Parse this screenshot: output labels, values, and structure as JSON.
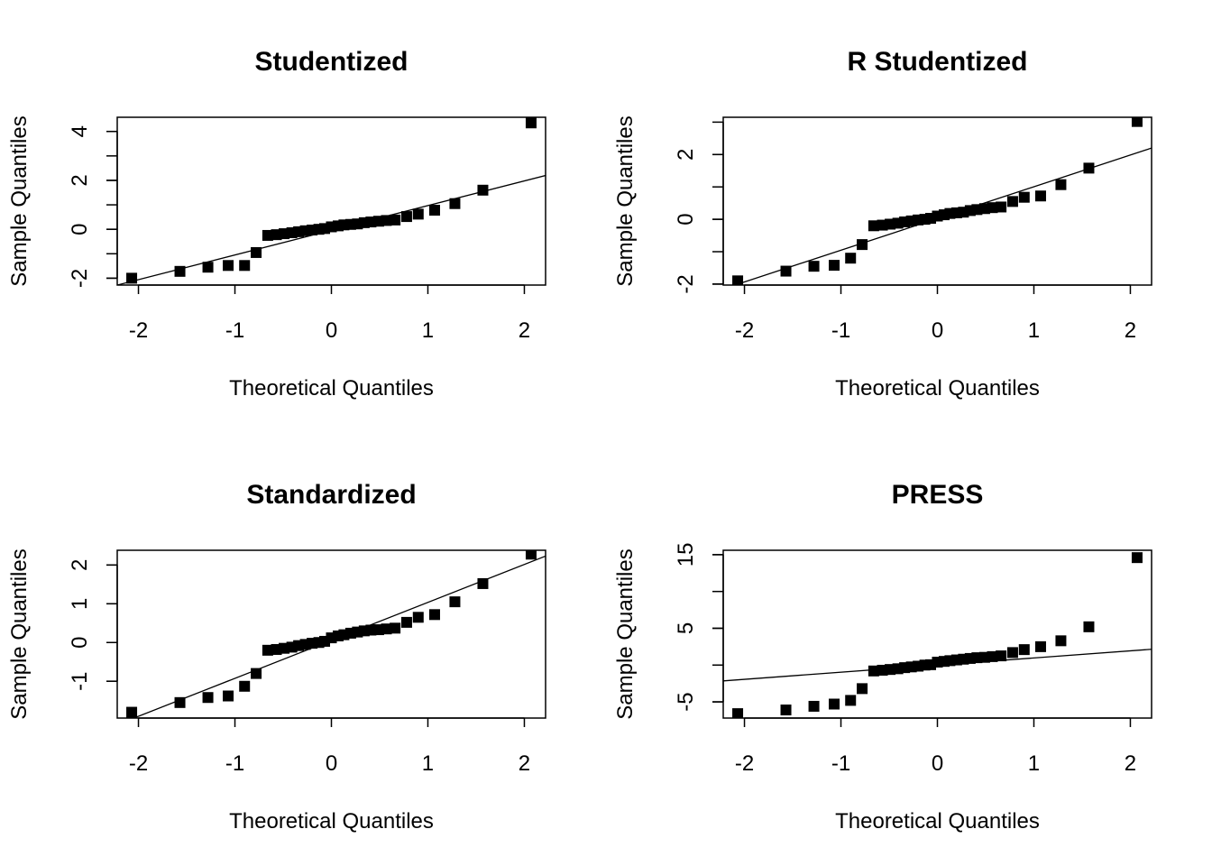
{
  "chart_data": [
    {
      "type": "scatter",
      "title": "Studentized",
      "xlabel": "Theoretical Quantiles",
      "ylabel": "Sample Quantiles",
      "xlim": [
        -2.22,
        2.22
      ],
      "ylim": [
        -2.28,
        4.58
      ],
      "x_ticks": [
        -2,
        -1,
        0,
        1,
        2
      ],
      "y_ticks": [
        -2,
        0,
        2,
        4
      ],
      "y_minor_ticks": [
        -2,
        -1,
        0,
        1,
        2,
        3,
        4
      ],
      "reference_line": [
        {
          "x": -2.22,
          "y": -2.28
        },
        {
          "x": 2.22,
          "y": 2.2
        }
      ],
      "points": {
        "x": [
          -2.07,
          -1.57,
          -1.28,
          -1.07,
          -0.9,
          -0.78,
          -0.66,
          -0.57,
          -0.49,
          -0.41,
          -0.34,
          -0.27,
          -0.2,
          -0.13,
          -0.07,
          0.0,
          0.07,
          0.13,
          0.2,
          0.27,
          0.34,
          0.41,
          0.49,
          0.57,
          0.66,
          0.78,
          0.9,
          1.07,
          1.28,
          1.57,
          2.07
        ],
        "y": [
          -2.0,
          -1.72,
          -1.55,
          -1.48,
          -1.48,
          -0.95,
          -0.25,
          -0.22,
          -0.18,
          -0.14,
          -0.1,
          -0.06,
          -0.03,
          0.0,
          0.03,
          0.1,
          0.14,
          0.18,
          0.2,
          0.22,
          0.27,
          0.3,
          0.33,
          0.36,
          0.38,
          0.52,
          0.62,
          0.78,
          1.05,
          1.6,
          4.35
        ]
      }
    },
    {
      "type": "scatter",
      "title": "R Studentized",
      "xlabel": "Theoretical Quantiles",
      "ylabel": "Sample Quantiles",
      "xlim": [
        -2.22,
        2.22
      ],
      "ylim": [
        -2.03,
        3.15
      ],
      "x_ticks": [
        -2,
        -1,
        0,
        1,
        2
      ],
      "y_ticks": [
        -2,
        0,
        2
      ],
      "y_minor_ticks": [
        -2,
        -1,
        0,
        1,
        2,
        3
      ],
      "reference_line": [
        {
          "x": -2.22,
          "y": -2.15
        },
        {
          "x": 2.22,
          "y": 2.2
        }
      ],
      "points": {
        "x": [
          -2.07,
          -1.57,
          -1.28,
          -1.07,
          -0.9,
          -0.78,
          -0.66,
          -0.57,
          -0.49,
          -0.41,
          -0.34,
          -0.27,
          -0.2,
          -0.13,
          -0.07,
          0.0,
          0.07,
          0.13,
          0.2,
          0.27,
          0.34,
          0.41,
          0.49,
          0.57,
          0.66,
          0.78,
          0.9,
          1.07,
          1.28,
          1.57,
          2.07
        ],
        "y": [
          -1.9,
          -1.6,
          -1.45,
          -1.42,
          -1.2,
          -0.78,
          -0.2,
          -0.18,
          -0.15,
          -0.12,
          -0.08,
          -0.05,
          -0.02,
          0.0,
          0.03,
          0.1,
          0.14,
          0.18,
          0.2,
          0.22,
          0.27,
          0.3,
          0.33,
          0.36,
          0.38,
          0.55,
          0.68,
          0.72,
          1.07,
          1.58,
          3.02
        ]
      }
    },
    {
      "type": "scatter",
      "title": "Standardized",
      "xlabel": "Theoretical Quantiles",
      "ylabel": "Sample Quantiles",
      "xlim": [
        -2.22,
        2.22
      ],
      "ylim": [
        -1.95,
        2.38
      ],
      "x_ticks": [
        -2,
        -1,
        0,
        1,
        2
      ],
      "y_ticks": [
        -1,
        0,
        1,
        2
      ],
      "reference_line": [
        {
          "x": -2.22,
          "y": -2.12
        },
        {
          "x": 2.22,
          "y": 2.23
        }
      ],
      "points": {
        "x": [
          -2.07,
          -1.57,
          -1.28,
          -1.07,
          -0.9,
          -0.78,
          -0.66,
          -0.57,
          -0.49,
          -0.41,
          -0.34,
          -0.27,
          -0.2,
          -0.13,
          -0.07,
          0.0,
          0.07,
          0.13,
          0.2,
          0.27,
          0.34,
          0.41,
          0.49,
          0.57,
          0.66,
          0.78,
          0.9,
          1.07,
          1.28,
          1.57,
          2.07
        ],
        "y": [
          -1.8,
          -1.55,
          -1.42,
          -1.38,
          -1.13,
          -0.8,
          -0.2,
          -0.18,
          -0.15,
          -0.12,
          -0.08,
          -0.05,
          -0.02,
          0.0,
          0.03,
          0.12,
          0.17,
          0.2,
          0.24,
          0.27,
          0.3,
          0.32,
          0.33,
          0.35,
          0.37,
          0.52,
          0.65,
          0.72,
          1.05,
          1.52,
          2.28
        ]
      }
    },
    {
      "type": "scatter",
      "title": "PRESS",
      "xlabel": "Theoretical Quantiles",
      "ylabel": "Sample Quantiles",
      "xlim": [
        -2.22,
        2.22
      ],
      "ylim": [
        -7.2,
        15.6
      ],
      "x_ticks": [
        -2,
        -1,
        0,
        1,
        2
      ],
      "y_ticks": [
        -5,
        5,
        15
      ],
      "y_minor_ticks": [
        -5,
        0,
        5,
        10,
        15
      ],
      "reference_line": [
        {
          "x": -2.22,
          "y": -2.15
        },
        {
          "x": 2.22,
          "y": 2.15
        }
      ],
      "points": {
        "x": [
          -2.07,
          -1.57,
          -1.28,
          -1.07,
          -0.9,
          -0.78,
          -0.66,
          -0.57,
          -0.49,
          -0.41,
          -0.34,
          -0.27,
          -0.2,
          -0.13,
          -0.07,
          0.0,
          0.07,
          0.13,
          0.2,
          0.27,
          0.34,
          0.41,
          0.49,
          0.57,
          0.66,
          0.78,
          0.9,
          1.07,
          1.28,
          1.57,
          2.07
        ],
        "y": [
          -6.6,
          -6.1,
          -5.6,
          -5.3,
          -4.8,
          -3.2,
          -0.8,
          -0.7,
          -0.6,
          -0.5,
          -0.35,
          -0.25,
          -0.15,
          0.0,
          0.05,
          0.4,
          0.5,
          0.6,
          0.7,
          0.8,
          0.9,
          1.0,
          1.05,
          1.15,
          1.25,
          1.7,
          2.1,
          2.5,
          3.3,
          5.2,
          14.6
        ]
      }
    }
  ]
}
